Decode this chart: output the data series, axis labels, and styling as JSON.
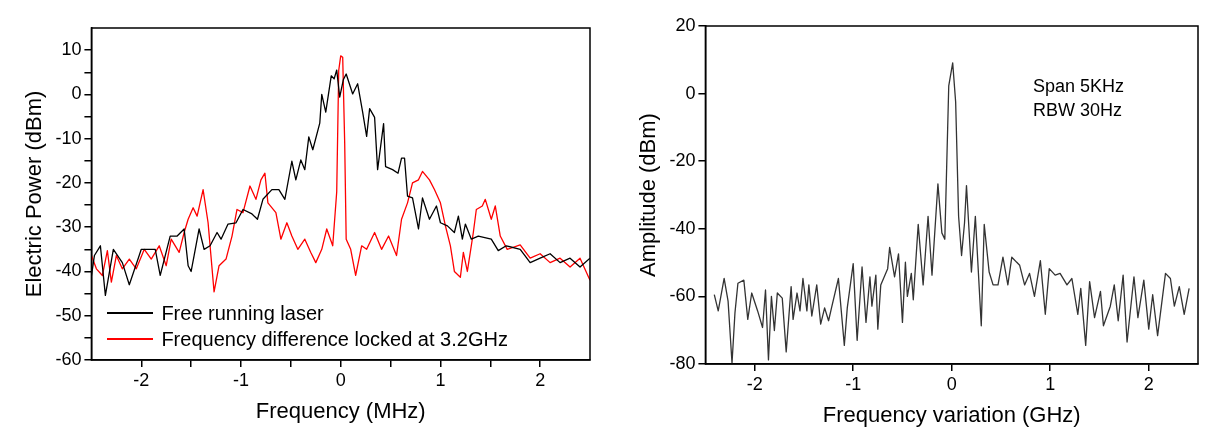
{
  "chart_data": [
    {
      "type": "line",
      "xlabel": "Frequency (MHz)",
      "ylabel": "Electric Power (dBm)",
      "xlim": [
        -2.5,
        2.5
      ],
      "ylim": [
        -60,
        15
      ],
      "xticks": [
        -2,
        {
          "value": -1.5,
          "label": null
        },
        -1,
        {
          "value": -0.5,
          "label": null
        },
        0,
        {
          "value": 0.5,
          "label": null
        },
        1,
        {
          "value": 1.5,
          "label": null
        },
        2
      ],
      "yticks": [
        -60,
        {
          "value": -55,
          "label": null
        },
        -50,
        {
          "value": -45,
          "label": null
        },
        -40,
        {
          "value": -35,
          "label": null
        },
        -30,
        {
          "value": -25,
          "label": null
        },
        -20,
        {
          "value": -15,
          "label": null
        },
        -10,
        {
          "value": -5,
          "label": null
        },
        0,
        {
          "value": 5,
          "label": null
        },
        10
      ],
      "legend": "bottom left",
      "marker": "none",
      "line_style": "solid",
      "series": [
        {
          "name": "Free running laser",
          "color": "#000000",
          "x": [
            -2.5,
            -2.47,
            -2.41,
            -2.36,
            -2.28,
            -2.19,
            -2.12,
            -2.0,
            -1.93,
            -1.86,
            -1.81,
            -1.71,
            -1.64,
            -1.57,
            -1.53,
            -1.5,
            -1.42,
            -1.37,
            -1.31,
            -1.24,
            -1.2,
            -1.13,
            -1.05,
            -0.98,
            -0.89,
            -0.835,
            -0.78,
            -0.69,
            -0.62,
            -0.56,
            -0.49,
            -0.45,
            -0.4,
            -0.36,
            -0.32,
            -0.28,
            -0.21,
            -0.19,
            -0.15,
            -0.095,
            -0.066,
            -0.04,
            -0.01,
            0.026,
            0.055,
            0.12,
            0.17,
            0.22,
            0.26,
            0.29,
            0.34,
            0.37,
            0.43,
            0.45,
            0.52,
            0.575,
            0.61,
            0.64,
            0.67,
            0.72,
            0.78,
            0.82,
            0.89,
            0.96,
            1.0,
            1.07,
            1.14,
            1.18,
            1.22,
            1.25,
            1.31,
            1.38,
            1.51,
            1.58,
            1.66,
            1.8,
            1.9,
            2.0,
            2.1,
            2.2,
            2.3,
            2.4,
            2.5
          ],
          "values": [
            -41,
            -36.4,
            -34.2,
            -45.4,
            -35,
            -38,
            -43,
            -35,
            -35,
            -35,
            -40.9,
            -32,
            -32,
            -30.4,
            -38.7,
            -40,
            -30.4,
            -35,
            -34.2,
            -31.2,
            -32.7,
            -29.3,
            -29,
            -26,
            -27,
            -28.2,
            -23.7,
            -21.5,
            -21.5,
            -23.7,
            -15.1,
            -19.3,
            -14.8,
            -17,
            -9.6,
            -12.5,
            -6.5,
            0,
            -4,
            4.2,
            3.5,
            5.5,
            -0.6,
            3.3,
            4.6,
            0.1,
            2.4,
            -4,
            -9.5,
            -3.2,
            -5.2,
            -17,
            -6.6,
            -16.3,
            -17,
            -17.8,
            -14.4,
            -14.4,
            -23,
            -23.4,
            -30.4,
            -23.4,
            -28.2,
            -25.2,
            -29,
            -29.7,
            -31.2,
            -27.5,
            -32.7,
            -29.3,
            -32.7,
            -32,
            -32.7,
            -35.3,
            -34.2,
            -35,
            -38,
            -37,
            -36,
            -38,
            -37,
            -39,
            -37
          ]
        },
        {
          "name": "Frequency difference locked at 3.2GHz",
          "color": "#ff0000",
          "x": [
            -2.5,
            -2.45,
            -2.39,
            -2.34,
            -2.3,
            -2.25,
            -2.19,
            -2.12,
            -2.05,
            -1.97,
            -1.9,
            -1.82,
            -1.75,
            -1.7,
            -1.62,
            -1.57,
            -1.53,
            -1.48,
            -1.44,
            -1.38,
            -1.33,
            -1.27,
            -1.22,
            -1.15,
            -1.09,
            -1.04,
            -0.98,
            -0.91,
            -0.85,
            -0.8,
            -0.76,
            -0.73,
            -0.65,
            -0.6,
            -0.54,
            -0.49,
            -0.43,
            -0.36,
            -0.3,
            -0.25,
            -0.19,
            -0.14,
            -0.08,
            -0.04,
            -0.02,
            0,
            0.02,
            0.04,
            0.055,
            0.1,
            0.15,
            0.21,
            0.26,
            0.34,
            0.41,
            0.48,
            0.56,
            0.61,
            0.67,
            0.72,
            0.78,
            0.82,
            0.89,
            0.94,
            1.0,
            1.05,
            1.1,
            1.14,
            1.2,
            1.23,
            1.27,
            1.33,
            1.36,
            1.42,
            1.45,
            1.51,
            1.55,
            1.6,
            1.67,
            1.8,
            1.9,
            2.0,
            2.1,
            2.2,
            2.3,
            2.4,
            2.5
          ],
          "values": [
            -36.4,
            -39.4,
            -40.9,
            -35.3,
            -42.4,
            -36.4,
            -39.4,
            -37.2,
            -39.4,
            -35,
            -37.2,
            -34.2,
            -38.7,
            -32.7,
            -35.7,
            -31.2,
            -28.2,
            -25.6,
            -27.5,
            -21.5,
            -29,
            -44.6,
            -38.7,
            -37.2,
            -32,
            -26,
            -26.7,
            -20.7,
            -23.7,
            -19.3,
            -17.8,
            -24.5,
            -26.7,
            -32.7,
            -29,
            -32,
            -35,
            -32.7,
            -35.7,
            -38,
            -35,
            -30.4,
            -34.2,
            -22,
            5.4,
            8.7,
            8.4,
            -11,
            -32.7,
            -35,
            -40.9,
            -34.2,
            -35,
            -31.2,
            -35,
            -32,
            -36.4,
            -28.2,
            -24.5,
            -20,
            -19.3,
            -17.4,
            -19.3,
            -21.5,
            -24.5,
            -29.7,
            -34.2,
            -40,
            -41.3,
            -35.7,
            -40,
            -31.2,
            -26,
            -25.2,
            -23.7,
            -28.2,
            -25.2,
            -32,
            -35,
            -34,
            -37,
            -36,
            -38,
            -37,
            -39,
            -37,
            -42
          ]
        }
      ]
    },
    {
      "type": "line",
      "xlabel": "Frequency variation (GHz)",
      "ylabel": "Amplitude (dBm)",
      "xlim": [
        -2.5,
        2.5
      ],
      "ylim": [
        -80,
        20
      ],
      "xticks": [
        -2,
        -1,
        0,
        1,
        2
      ],
      "yticks": [
        -80,
        -60,
        -40,
        -20,
        0,
        20
      ],
      "annotations": [
        "Span 5KHz",
        "RBW 30Hz"
      ],
      "marker": "none",
      "line_style": "solid",
      "series": [
        {
          "color": "#333333",
          "x": [
            -2.41,
            -2.37,
            -2.31,
            -2.27,
            -2.23,
            -2.2,
            -2.17,
            -2.11,
            -2.07,
            -2.03,
            -1.97,
            -1.92,
            -1.89,
            -1.86,
            -1.83,
            -1.8,
            -1.77,
            -1.72,
            -1.68,
            -1.63,
            -1.61,
            -1.57,
            -1.54,
            -1.51,
            -1.47,
            -1.45,
            -1.42,
            -1.37,
            -1.33,
            -1.29,
            -1.25,
            -1.22,
            -1.15,
            -1.09,
            -1.06,
            -1.0,
            -0.96,
            -0.91,
            -0.87,
            -0.83,
            -0.81,
            -0.77,
            -0.75,
            -0.72,
            -0.65,
            -0.63,
            -0.58,
            -0.54,
            -0.5,
            -0.47,
            -0.45,
            -0.41,
            -0.39,
            -0.34,
            -0.29,
            -0.24,
            -0.2,
            -0.14,
            -0.1,
            -0.07,
            -0.03,
            0.01,
            0.04,
            0.07,
            0.1,
            0.13,
            0.15,
            0.2,
            0.24,
            0.3,
            0.33,
            0.38,
            0.42,
            0.47,
            0.52,
            0.57,
            0.61,
            0.69,
            0.74,
            0.79,
            0.84,
            0.9,
            0.95,
            0.99,
            1.05,
            1.1,
            1.17,
            1.22,
            1.28,
            1.31,
            1.36,
            1.4,
            1.45,
            1.51,
            1.54,
            1.61,
            1.65,
            1.69,
            1.74,
            1.78,
            1.85,
            1.89,
            1.95,
            2.0,
            2.04,
            2.09,
            2.17,
            2.22,
            2.26,
            2.31,
            2.36,
            2.41
          ],
          "values": [
            -59.5,
            -64.3,
            -54.7,
            -61.4,
            -79.8,
            -64.8,
            -56.1,
            -55.2,
            -66.8,
            -59,
            -64.3,
            -69.2,
            -58.1,
            -78.8,
            -60,
            -70.1,
            -59,
            -60.5,
            -76.4,
            -57.1,
            -66.8,
            -59,
            -64.3,
            -54.7,
            -64.3,
            -56.6,
            -65.8,
            -56.6,
            -68.2,
            -63.4,
            -67.2,
            -63.4,
            -54.7,
            -74.5,
            -63.4,
            -50.3,
            -73,
            -51.3,
            -67.7,
            -54.2,
            -62.9,
            -53.7,
            -69.7,
            -56.6,
            -51.8,
            -45.5,
            -54.2,
            -47.4,
            -67.7,
            -49.9,
            -60,
            -53.2,
            -61,
            -38.7,
            -56.6,
            -36.3,
            -53.7,
            -26.7,
            -41.2,
            -43.1,
            2.3,
            9.1,
            -2.5,
            -36.3,
            -47.9,
            -38.3,
            -27.2,
            -52.8,
            -36.3,
            -68.7,
            -38.7,
            -52.8,
            -56.6,
            -56.6,
            -48.4,
            -56.6,
            -48.4,
            -50.8,
            -56.6,
            -53.2,
            -60,
            -49.4,
            -65.3,
            -51.8,
            -53.7,
            -53.2,
            -56.6,
            -54.7,
            -65.3,
            -57.6,
            -74.5,
            -55.6,
            -66.3,
            -58.5,
            -68.7,
            -62.9,
            -56.6,
            -67.2,
            -53.7,
            -73.5,
            -54.2,
            -66.3,
            -55.2,
            -69.7,
            -59.5,
            -71.6,
            -53.2,
            -54.7,
            -62.9,
            -57.1,
            -65.3,
            -57.6
          ]
        }
      ]
    }
  ]
}
